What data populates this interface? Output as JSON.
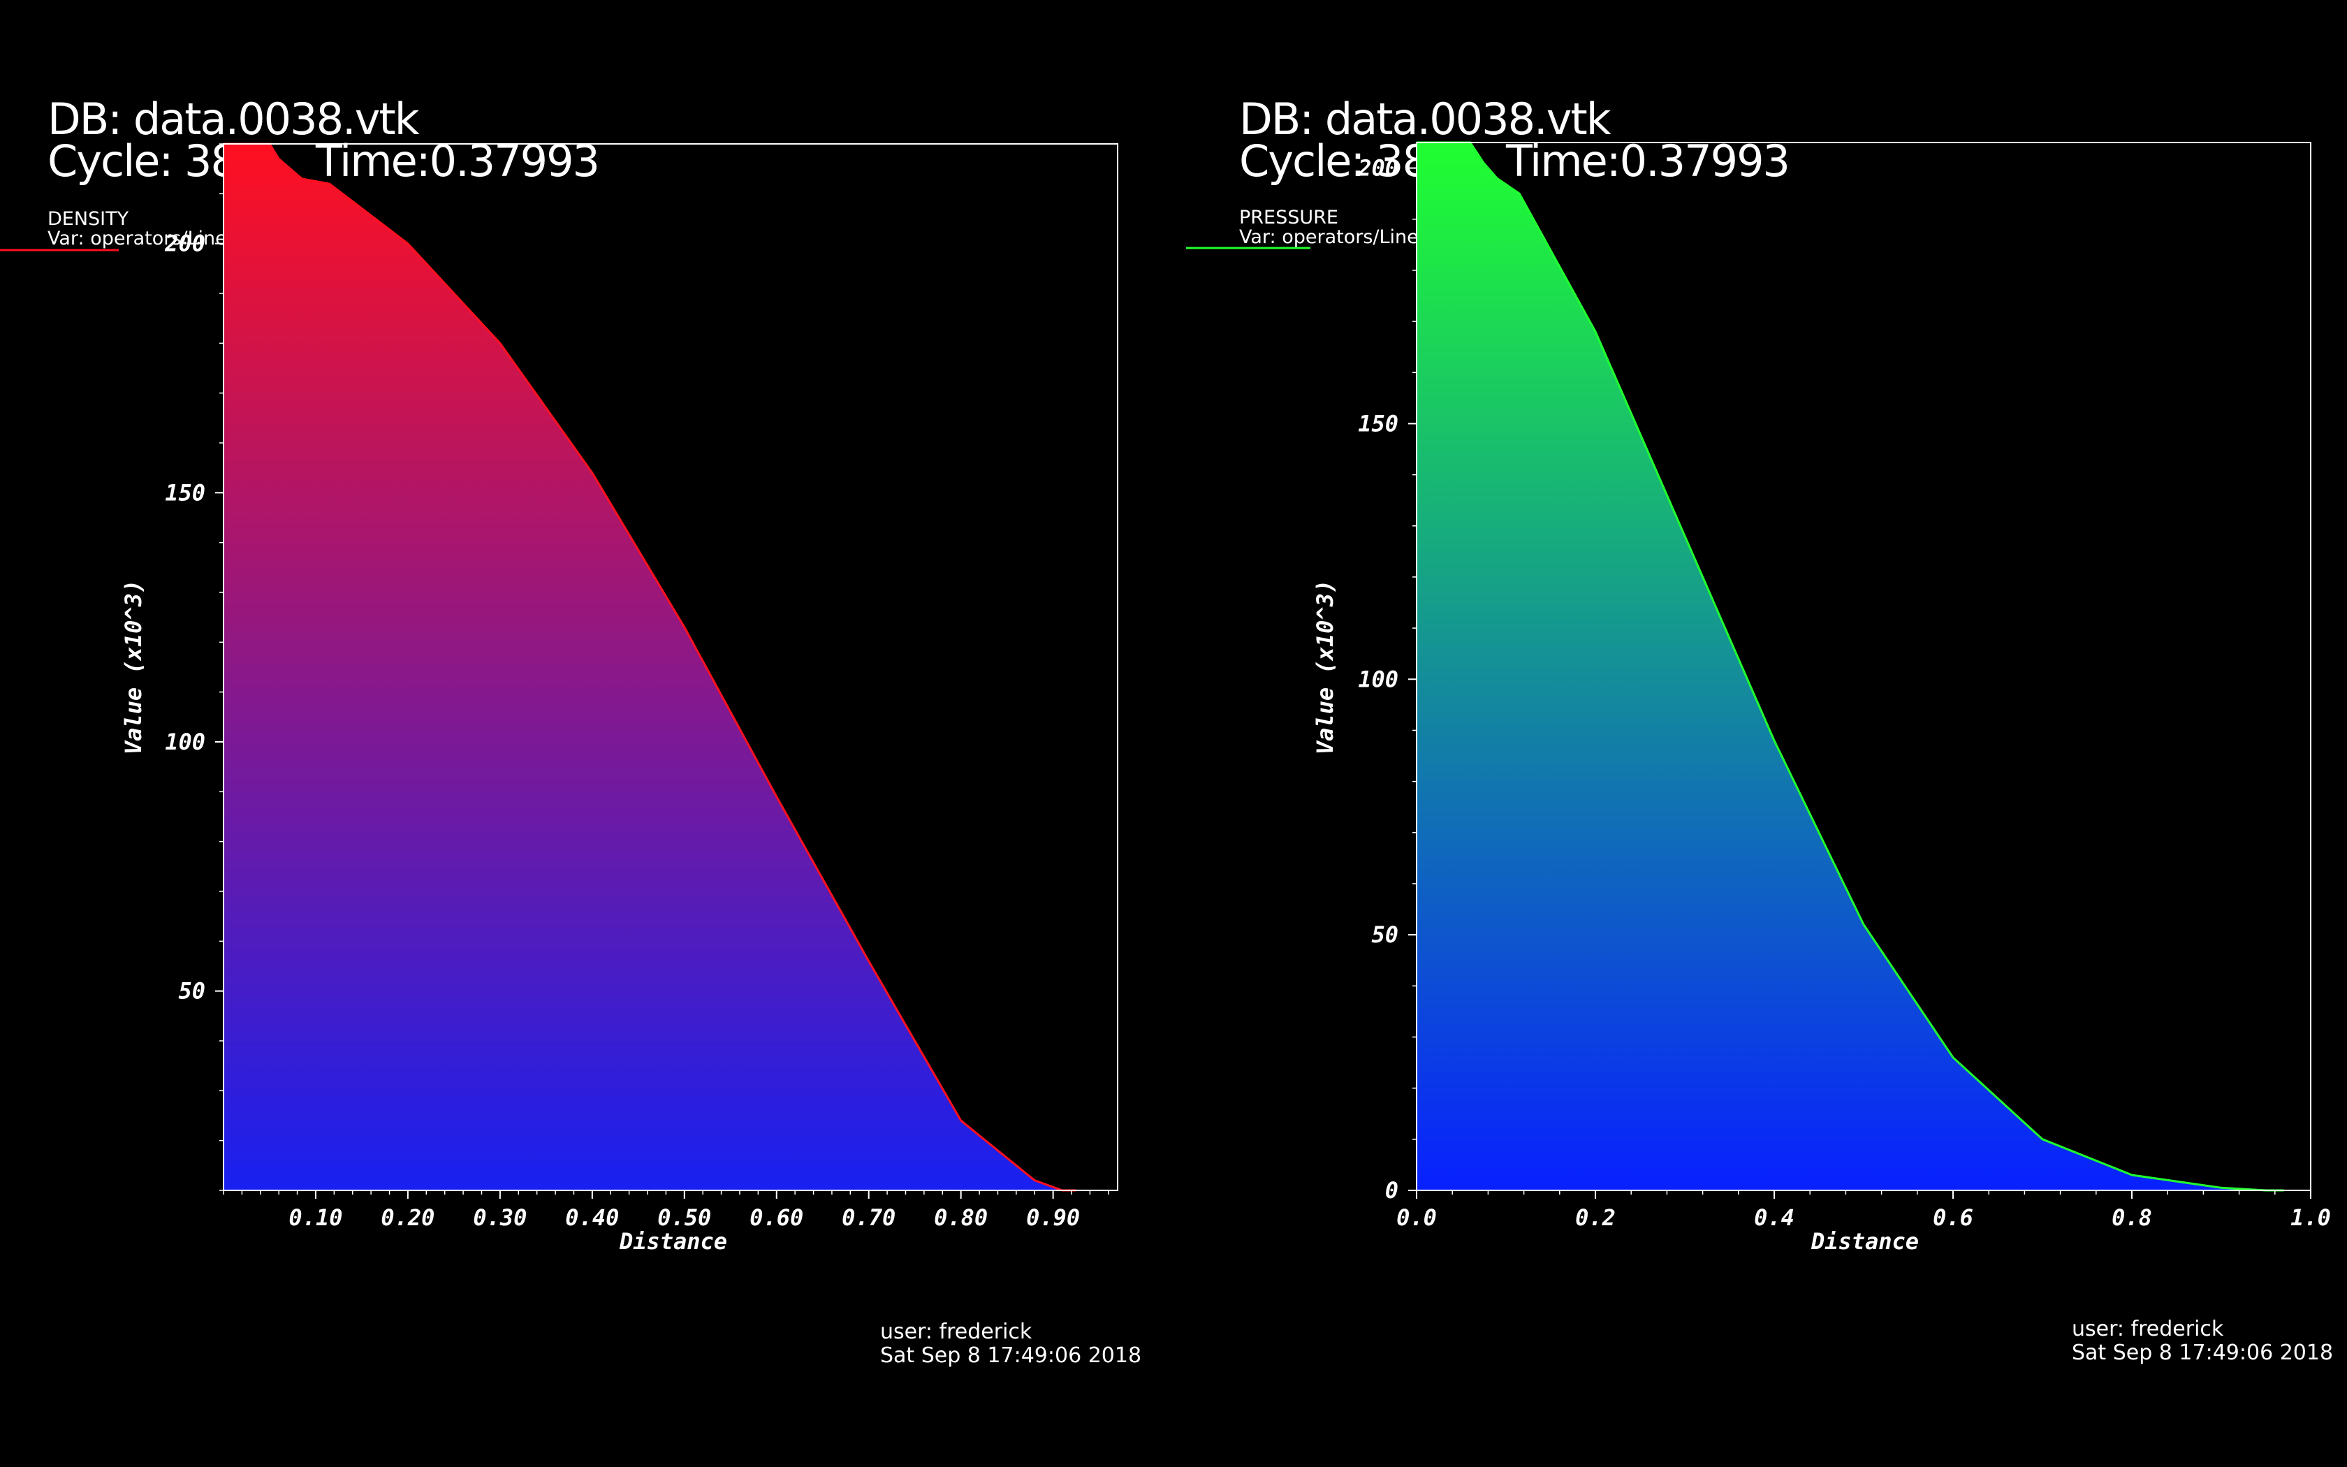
{
  "colors": {
    "background": "#000000",
    "density_top": "#ff1020",
    "density_bottom": "#1820f0",
    "pressure_top": "#20ff30",
    "pressure_bottom": "#0820ff"
  },
  "chart_data": [
    {
      "type": "area",
      "header": {
        "db": "DB: data.0038.vtk",
        "cycle": "Cycle: 38",
        "time": "Time:0.37993"
      },
      "legend": {
        "name": "DENSITY",
        "var": "Var: operators/Lineout/rho",
        "color": "#ff1020"
      },
      "xlabel": "Distance",
      "ylabel": "Value  (x10^3)",
      "xlim": [
        0.0,
        0.97
      ],
      "ylim": [
        10,
        220
      ],
      "xticks": [
        0.1,
        0.2,
        0.3,
        0.4,
        0.5,
        0.6,
        0.7,
        0.8,
        0.9
      ],
      "xtick_labels": [
        "0.10",
        "0.20",
        "0.30",
        "0.40",
        "0.50",
        "0.60",
        "0.70",
        "0.80",
        "0.90"
      ],
      "yticks": [
        50,
        100,
        150,
        200
      ],
      "ytick_labels": [
        "50",
        "100",
        "150",
        "200"
      ],
      "series": [
        {
          "x": [
            0.0,
            0.05,
            0.06,
            0.085,
            0.115,
            0.2,
            0.3,
            0.4,
            0.5,
            0.6,
            0.7,
            0.8,
            0.88,
            0.91,
            0.925
          ],
          "y": [
            221,
            221,
            217,
            213,
            212,
            200,
            180,
            154,
            123,
            89,
            56,
            24,
            12,
            7,
            0
          ]
        }
      ],
      "footer": {
        "user": "user: frederick",
        "date": "Sat Sep  8 17:49:06 2018"
      }
    },
    {
      "type": "area",
      "header": {
        "db": "DB: data.0038.vtk",
        "cycle": "Cycle: 38",
        "time": "Time:0.37993"
      },
      "legend": {
        "name": "PRESSURE",
        "var": "Var: operators/Lineout/prs",
        "color": "#20ff30"
      },
      "xlabel": "Distance",
      "ylabel": "Value  (x10^3)",
      "xlim": [
        0.0,
        1.0
      ],
      "ylim": [
        0,
        205
      ],
      "xticks": [
        0.0,
        0.2,
        0.4,
        0.6,
        0.8,
        1.0
      ],
      "xtick_labels": [
        "0.0",
        "0.2",
        "0.4",
        "0.6",
        "0.8",
        "1.0"
      ],
      "yticks": [
        0,
        50,
        100,
        150,
        200
      ],
      "ytick_labels": [
        "0",
        "50",
        "100",
        "150",
        "200"
      ],
      "series": [
        {
          "x": [
            0.0,
            0.06,
            0.075,
            0.09,
            0.115,
            0.2,
            0.3,
            0.4,
            0.5,
            0.6,
            0.7,
            0.8,
            0.9,
            0.95,
            0.97
          ],
          "y": [
            205,
            205,
            201,
            198,
            195,
            168,
            128,
            88,
            52,
            26,
            10,
            3,
            0.5,
            0,
            0
          ]
        }
      ],
      "footer": {
        "user": "user: frederick",
        "date": "Sat Sep  8 17:49:06 2018"
      }
    }
  ]
}
